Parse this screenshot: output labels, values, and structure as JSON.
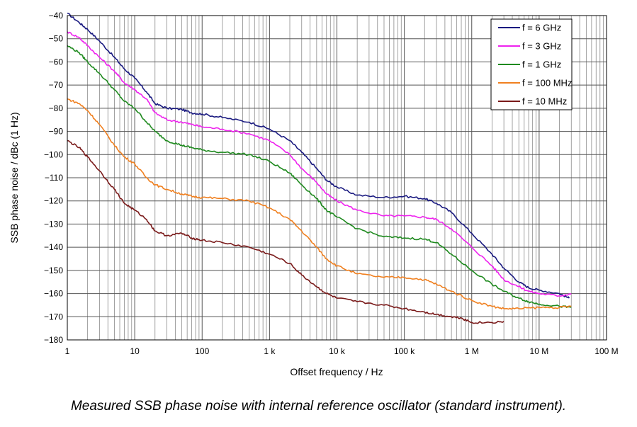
{
  "caption": "Measured SSB phase noise with internal reference oscillator (standard instrument).",
  "chart_data": {
    "type": "line",
    "title": "",
    "xlabel": "Offset frequency / Hz",
    "ylabel": "SSB phase noise / dBc (1 Hz)",
    "xscale": "log",
    "xlim": [
      1,
      100000000
    ],
    "ylim": [
      -180,
      -40
    ],
    "grid": true,
    "legend_position": "top-right",
    "x_ticks": [
      {
        "value": 1,
        "label": "1"
      },
      {
        "value": 10,
        "label": "10"
      },
      {
        "value": 100,
        "label": "100"
      },
      {
        "value": 1000,
        "label": "1 k"
      },
      {
        "value": 10000,
        "label": "10 k"
      },
      {
        "value": 100000,
        "label": "100 k"
      },
      {
        "value": 1000000,
        "label": "1 M"
      },
      {
        "value": 10000000,
        "label": "10 M"
      },
      {
        "value": 100000000,
        "label": "100 M"
      }
    ],
    "y_ticks": [
      {
        "value": -40,
        "label": "−40"
      },
      {
        "value": -50,
        "label": "−50"
      },
      {
        "value": -60,
        "label": "−60"
      },
      {
        "value": -70,
        "label": "−70"
      },
      {
        "value": -80,
        "label": "−80"
      },
      {
        "value": -90,
        "label": "−90"
      },
      {
        "value": -100,
        "label": "−100"
      },
      {
        "value": -110,
        "label": "−110"
      },
      {
        "value": -120,
        "label": "−120"
      },
      {
        "value": -130,
        "label": "−130"
      },
      {
        "value": -140,
        "label": "−140"
      },
      {
        "value": -150,
        "label": "−150"
      },
      {
        "value": -160,
        "label": "−160"
      },
      {
        "value": -170,
        "label": "−170"
      },
      {
        "value": -180,
        "label": "−180"
      }
    ],
    "series": [
      {
        "name": "f = 6 GHz",
        "color": "#1a1a80",
        "points": [
          [
            1,
            -39
          ],
          [
            1.5,
            -43
          ],
          [
            2,
            -46
          ],
          [
            3,
            -51
          ],
          [
            5,
            -58
          ],
          [
            7,
            -63
          ],
          [
            10,
            -67
          ],
          [
            15,
            -73
          ],
          [
            20,
            -78
          ],
          [
            30,
            -80
          ],
          [
            50,
            -80.5
          ],
          [
            70,
            -82
          ],
          [
            100,
            -82.5
          ],
          [
            200,
            -84
          ],
          [
            500,
            -86
          ],
          [
            1000,
            -89
          ],
          [
            2000,
            -94
          ],
          [
            3000,
            -99
          ],
          [
            5000,
            -106
          ],
          [
            7000,
            -111
          ],
          [
            10000,
            -114
          ],
          [
            20000,
            -117.5
          ],
          [
            50000,
            -118.5
          ],
          [
            100000,
            -118
          ],
          [
            200000,
            -119
          ],
          [
            300000,
            -121
          ],
          [
            500000,
            -125
          ],
          [
            1000000,
            -134
          ],
          [
            2000000,
            -143
          ],
          [
            3000000,
            -149
          ],
          [
            5000000,
            -155
          ],
          [
            7000000,
            -157.5
          ],
          [
            10000000,
            -158.5
          ],
          [
            20000000,
            -160
          ],
          [
            28000000,
            -162
          ]
        ]
      },
      {
        "name": "f = 3 GHz",
        "color": "#ee22ee",
        "points": [
          [
            1,
            -47
          ],
          [
            1.5,
            -49.5
          ],
          [
            2,
            -53
          ],
          [
            3,
            -58
          ],
          [
            5,
            -64
          ],
          [
            7,
            -69
          ],
          [
            10,
            -72
          ],
          [
            15,
            -76
          ],
          [
            20,
            -82
          ],
          [
            30,
            -85
          ],
          [
            50,
            -86
          ],
          [
            70,
            -87
          ],
          [
            100,
            -88
          ],
          [
            200,
            -89
          ],
          [
            500,
            -91
          ],
          [
            1000,
            -94
          ],
          [
            2000,
            -100
          ],
          [
            3000,
            -106
          ],
          [
            5000,
            -112
          ],
          [
            7000,
            -117
          ],
          [
            10000,
            -120
          ],
          [
            20000,
            -124
          ],
          [
            50000,
            -126.5
          ],
          [
            100000,
            -126.5
          ],
          [
            200000,
            -127
          ],
          [
            300000,
            -128
          ],
          [
            500000,
            -132
          ],
          [
            1000000,
            -140
          ],
          [
            2000000,
            -148
          ],
          [
            3000000,
            -154
          ],
          [
            5000000,
            -157
          ],
          [
            7000000,
            -159
          ],
          [
            10000000,
            -160
          ],
          [
            20000000,
            -161
          ],
          [
            30000000,
            -160
          ]
        ]
      },
      {
        "name": "f = 1 GHz",
        "color": "#1f8a1f",
        "points": [
          [
            1,
            -53
          ],
          [
            1.5,
            -56
          ],
          [
            2,
            -60
          ],
          [
            3,
            -65
          ],
          [
            5,
            -72
          ],
          [
            7,
            -77
          ],
          [
            10,
            -80
          ],
          [
            15,
            -86
          ],
          [
            20,
            -90
          ],
          [
            30,
            -94
          ],
          [
            50,
            -96
          ],
          [
            70,
            -97
          ],
          [
            100,
            -98
          ],
          [
            200,
            -99
          ],
          [
            500,
            -100
          ],
          [
            1000,
            -103
          ],
          [
            2000,
            -108
          ],
          [
            3000,
            -113
          ],
          [
            5000,
            -119
          ],
          [
            7000,
            -124
          ],
          [
            10000,
            -127
          ],
          [
            20000,
            -132
          ],
          [
            50000,
            -135.5
          ],
          [
            100000,
            -136
          ],
          [
            200000,
            -136.5
          ],
          [
            300000,
            -138
          ],
          [
            500000,
            -143
          ],
          [
            1000000,
            -150
          ],
          [
            2000000,
            -156
          ],
          [
            3000000,
            -159
          ],
          [
            5000000,
            -162
          ],
          [
            7000000,
            -163.5
          ],
          [
            10000000,
            -164.5
          ],
          [
            20000000,
            -165.5
          ],
          [
            30000000,
            -166
          ]
        ]
      },
      {
        "name": "f = 100 MHz",
        "color": "#f08020",
        "points": [
          [
            1,
            -76
          ],
          [
            1.5,
            -78
          ],
          [
            2,
            -81
          ],
          [
            3,
            -87
          ],
          [
            5,
            -96
          ],
          [
            7,
            -101
          ],
          [
            10,
            -104
          ],
          [
            15,
            -110
          ],
          [
            20,
            -113
          ],
          [
            30,
            -115
          ],
          [
            50,
            -117
          ],
          [
            70,
            -118
          ],
          [
            100,
            -118.5
          ],
          [
            200,
            -119
          ],
          [
            500,
            -120
          ],
          [
            1000,
            -123
          ],
          [
            2000,
            -128
          ],
          [
            3000,
            -133
          ],
          [
            5000,
            -140
          ],
          [
            7000,
            -145
          ],
          [
            10000,
            -148
          ],
          [
            20000,
            -151.5
          ],
          [
            50000,
            -153
          ],
          [
            100000,
            -153
          ],
          [
            200000,
            -154
          ],
          [
            300000,
            -156
          ],
          [
            500000,
            -159
          ],
          [
            1000000,
            -163
          ],
          [
            2000000,
            -165.5
          ],
          [
            3000000,
            -166.5
          ],
          [
            5000000,
            -166.5
          ],
          [
            10000000,
            -166
          ],
          [
            20000000,
            -166
          ],
          [
            30000000,
            -165.5
          ]
        ]
      },
      {
        "name": "f = 10 MHz",
        "color": "#7a1a1a",
        "points": [
          [
            1,
            -94
          ],
          [
            1.5,
            -97
          ],
          [
            2,
            -101
          ],
          [
            3,
            -107
          ],
          [
            5,
            -115
          ],
          [
            7,
            -121
          ],
          [
            10,
            -124
          ],
          [
            15,
            -128
          ],
          [
            20,
            -133
          ],
          [
            30,
            -135
          ],
          [
            50,
            -134
          ],
          [
            70,
            -136
          ],
          [
            100,
            -137
          ],
          [
            200,
            -138
          ],
          [
            500,
            -140
          ],
          [
            1000,
            -143
          ],
          [
            2000,
            -147
          ],
          [
            3000,
            -152
          ],
          [
            5000,
            -157
          ],
          [
            7000,
            -160
          ],
          [
            10000,
            -162
          ],
          [
            20000,
            -163.5
          ],
          [
            50000,
            -165
          ],
          [
            100000,
            -166.5
          ],
          [
            200000,
            -168
          ],
          [
            300000,
            -169
          ],
          [
            500000,
            -170
          ],
          [
            700000,
            -170.5
          ],
          [
            1000000,
            -172.5
          ],
          [
            2000000,
            -172.5
          ],
          [
            3000000,
            -172
          ]
        ]
      }
    ]
  }
}
